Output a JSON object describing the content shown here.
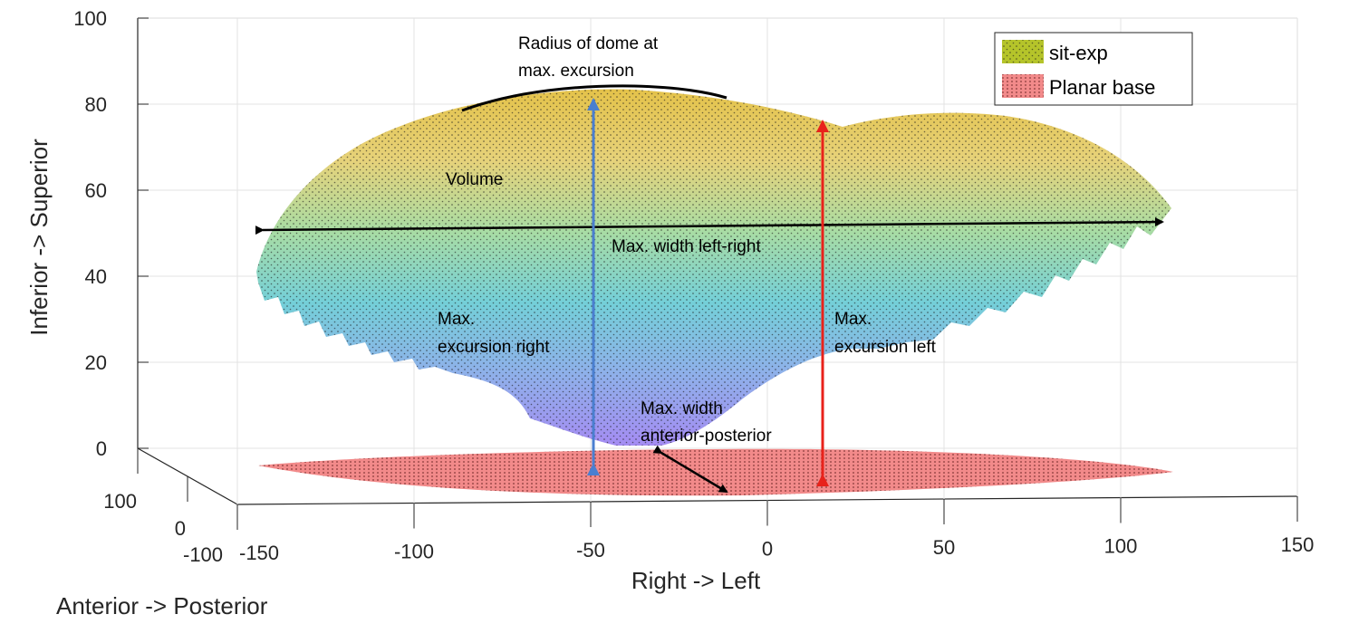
{
  "chart_data": {
    "type": "surface3d",
    "title": "",
    "xlabel": "Right -> Left",
    "ylabel": "Anterior -> Posterior",
    "zlabel": "Inferior -> Superior",
    "x_ticks": [
      "-150",
      "-100",
      "-50",
      "0",
      "50",
      "100",
      "150"
    ],
    "y_ticks": [
      "-100",
      "0",
      "100"
    ],
    "z_ticks": [
      "0",
      "20",
      "40",
      "60",
      "80",
      "100"
    ],
    "xlim": [
      -150,
      150
    ],
    "ylim": [
      -100,
      100
    ],
    "zlim": [
      0,
      100
    ],
    "grid": true,
    "legend_position": "top-right",
    "series": [
      {
        "name": "sit-exp",
        "color": "#b5c42a",
        "kind": "surface",
        "colormap": [
          "#9f8cf0",
          "#6ec9e0",
          "#8fd6a8",
          "#e3d66a",
          "#e6b44a"
        ]
      },
      {
        "name": "Planar base",
        "color": "#f28a8a",
        "kind": "plane",
        "z": 0
      }
    ],
    "approx_extents": {
      "dome_top_z": 84,
      "dome_bottom_z": 3,
      "left_right_width_x": [
        -140,
        110
      ],
      "right_excursion_x": -50,
      "left_excursion_x": 15
    },
    "annotations": [
      {
        "text": "Radius of dome at",
        "color": "#000000"
      },
      {
        "text": "max. excursion",
        "color": "#000000"
      },
      {
        "text": "Volume",
        "color": "#000000"
      },
      {
        "text": "Max. width left-right",
        "color": "#000000"
      },
      {
        "text": "Max.",
        "color": "#000000"
      },
      {
        "text": "excursion right",
        "color": "#000000"
      },
      {
        "text": "Max.",
        "color": "#000000"
      },
      {
        "text": "excursion left",
        "color": "#000000"
      },
      {
        "text": "Max. width",
        "color": "#000000"
      },
      {
        "text": "anterior-posterior",
        "color": "#000000"
      }
    ],
    "arrow_colors": {
      "left_right": "#000000",
      "right_excursion": "#4a7fd0",
      "left_excursion": "#e8221b",
      "anterior_posterior": "#000000",
      "dome_arc": "#000000"
    }
  }
}
